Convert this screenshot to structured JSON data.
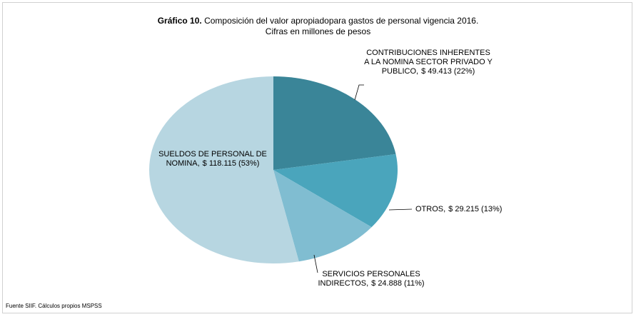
{
  "chart_data": {
    "type": "pie",
    "title_bold": "Gráfico 10.",
    "title": "Composición del valor apropiadopara gastos de personal vigencia 2016.",
    "subtitle": "Cifras en millones de pesos",
    "categories": [
      "CONTRIBUCIONES INHERENTES A LA NOMINA SECTOR PRIVADO Y PUBLICO,",
      "OTROS,",
      "SERVICIOS PERSONALES INDIRECTOS,",
      "SUELDOS DE PERSONAL DE NOMINA,"
    ],
    "values": [
      49413,
      29215,
      24888,
      118115
    ],
    "value_labels": [
      "$ 49.413 (22%)",
      "$ 29.215 (13%)",
      "$ 24.888 (11%)",
      "$ 118.115 (53%)"
    ],
    "colors": [
      "#3a8598",
      "#4aa5bc",
      "#80bdd1",
      "#b7d6e1"
    ],
    "source": "Fuente SIIF. Cálculos propios MSPSS"
  }
}
